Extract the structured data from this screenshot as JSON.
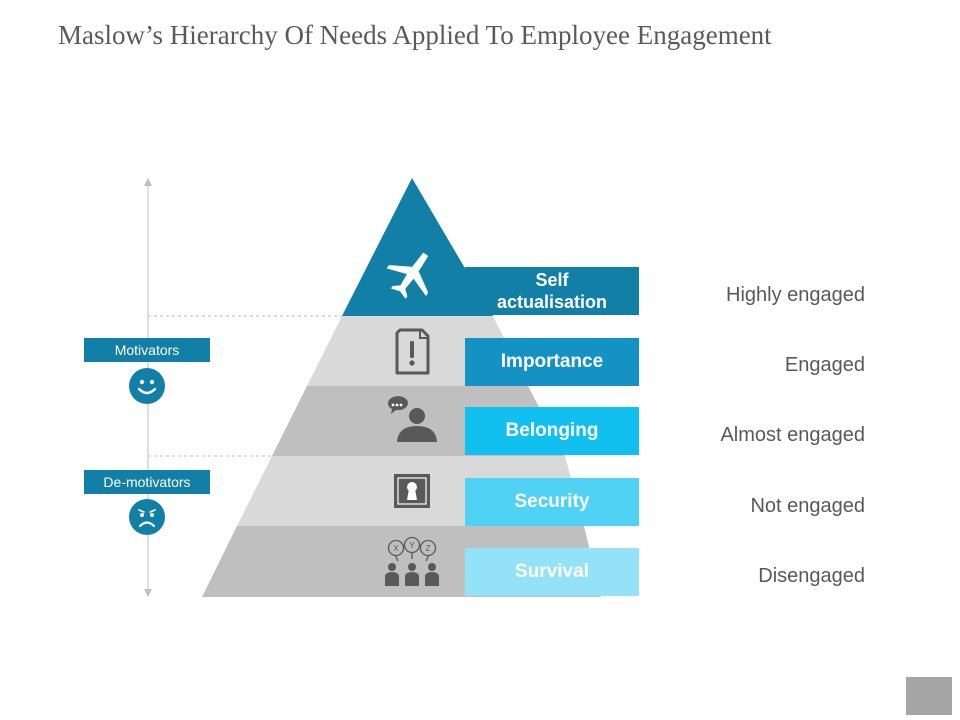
{
  "title": "Maslow’s Hierarchy Of Needs Applied To Employee Engagement",
  "side_labels": {
    "motivators": "Motivators",
    "demotivators": "De-motivators"
  },
  "levels": [
    {
      "label": "Self actualisation",
      "engagement": "Highly engaged",
      "icon": "airplane-icon",
      "color": "#127fa7"
    },
    {
      "label": "Importance",
      "engagement": "Engaged",
      "icon": "document-exclamation-icon",
      "color": "#1592c4"
    },
    {
      "label": "Belonging",
      "engagement": "Almost engaged",
      "icon": "person-chat-icon",
      "color": "#11c0ee"
    },
    {
      "label": "Security",
      "engagement": "Not engaged",
      "icon": "keyhole-icon",
      "color": "#4fd2f3"
    },
    {
      "label": "Survival",
      "engagement": "Disengaged",
      "icon": "group-xyz-icon",
      "color": "#93e2f7"
    }
  ],
  "colors": {
    "pyramid_top": "#127fa7",
    "band_light": "#d9d9d9",
    "band_dark": "#bfbfbf",
    "icon": "#595959"
  }
}
